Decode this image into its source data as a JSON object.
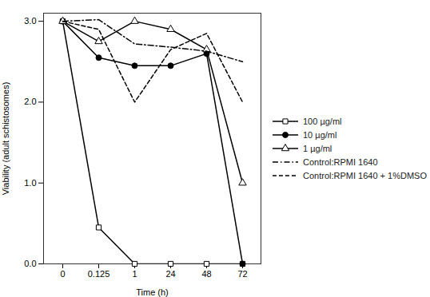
{
  "chart_data": {
    "type": "line",
    "xlabel": "Time (h)",
    "ylabel": "Viability (adult schistosomes)",
    "categories": [
      "0",
      "0.125",
      "1",
      "24",
      "48",
      "72"
    ],
    "ylim": [
      0,
      3.1
    ],
    "yticks": [
      0,
      1,
      2,
      3
    ],
    "legend": "right",
    "series": [
      {
        "name": "100 µg/ml",
        "color": "#000000",
        "marker": "open-square",
        "line_style": "solid",
        "values": [
          3,
          0.45,
          0,
          0,
          0,
          0
        ]
      },
      {
        "name": "10 µg/ml",
        "color": "#000000",
        "marker": "circle",
        "line_style": "solid",
        "values": [
          3,
          2.55,
          2.45,
          2.45,
          2.6,
          0
        ]
      },
      {
        "name": "1 µg/ml",
        "color": "#000000",
        "marker": "open-triangle",
        "line_style": "solid",
        "values": [
          3,
          2.75,
          3.0,
          2.9,
          2.65,
          1.0
        ]
      },
      {
        "name": "Control:RPMI 1640",
        "color": "#000000",
        "marker": "none",
        "line_style": "dashdot",
        "values": [
          3.0,
          3.02,
          2.72,
          2.68,
          2.63,
          2.5
        ]
      },
      {
        "name": "Control:RPMI 1640 + 1%DMSO",
        "color": "#000000",
        "marker": "none",
        "line_style": "dashed",
        "values": [
          3.0,
          2.9,
          2.0,
          2.65,
          2.85,
          2.0
        ]
      }
    ]
  }
}
